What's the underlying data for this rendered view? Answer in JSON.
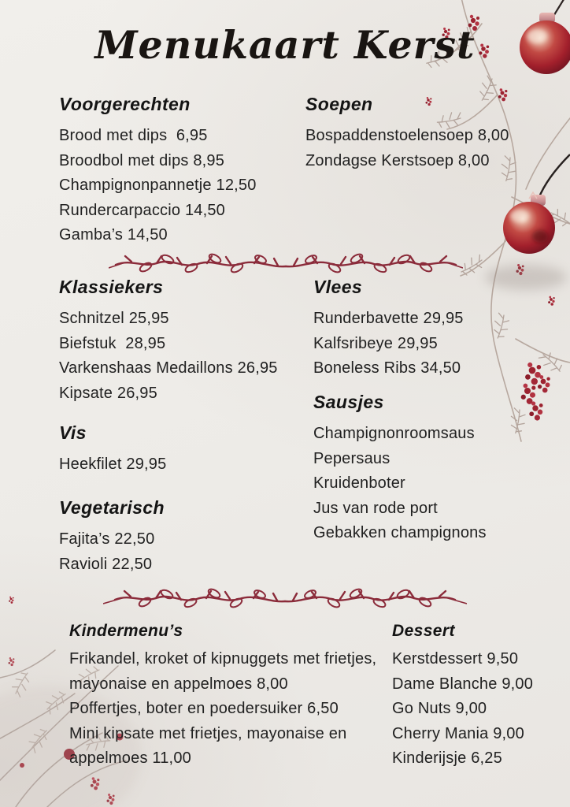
{
  "title": "Menukaart Kerst",
  "colors": {
    "background": "#edebe7",
    "text": "#212121",
    "heading": "#141414",
    "vine": "#8b2b3a",
    "bauble_red": "#a92531",
    "branch_taupe": "#b3a49c",
    "berry_red": "#9c2330"
  },
  "decorations": {
    "divider_icon": "vine-leaf-divider",
    "top_right": "red-bauble-ornament-with-frosted-berry-branch",
    "mid_right": "red-bauble-ornament-hanging-on-string",
    "bottom_left": "frosted-branch-with-red-berries"
  },
  "sections": {
    "voorgerechten": {
      "heading": "Voorgerechten",
      "items": [
        "Brood met dips  6,95",
        "Broodbol met dips 8,95",
        "Champignonpannetje 12,50",
        "Rundercarpaccio 14,50",
        "Gamba’s 14,50"
      ]
    },
    "soepen": {
      "heading": "Soepen",
      "items": [
        "Bospaddenstoelensoep 8,00",
        "Zondagse Kerstsoep 8,00"
      ]
    },
    "klassiekers": {
      "heading": "Klassiekers",
      "items": [
        "Schnitzel 25,95",
        "Biefstuk  28,95",
        "Varkenshaas Medaillons 26,95",
        "Kipsate 26,95"
      ]
    },
    "vlees": {
      "heading": "Vlees",
      "items": [
        "Runderbavette 29,95",
        "Kalfsribeye 29,95",
        "Boneless Ribs 34,50"
      ]
    },
    "vis": {
      "heading": "Vis",
      "items": [
        "Heekfilet 29,95"
      ]
    },
    "sausjes": {
      "heading": "Sausjes",
      "items": [
        "Champignonroomsaus",
        "Pepersaus",
        "Kruidenboter",
        "Jus van rode port",
        "Gebakken champignons"
      ]
    },
    "vegetarisch": {
      "heading": "Vegetarisch",
      "items": [
        "Fajita’s 22,50",
        "Ravioli 22,50"
      ]
    },
    "kindermenus": {
      "heading": "Kindermenu’s",
      "items": [
        "Frikandel, kroket of kipnuggets met frietjes, mayonaise en appelmoes 8,00",
        "Poffertjes, boter en poedersuiker 6,50",
        "Mini kipsate met frietjes, mayonaise en appelmoes 11,00"
      ]
    },
    "dessert": {
      "heading": "Dessert",
      "items": [
        "Kerstdessert 9,50",
        "Dame Blanche 9,00",
        "Go Nuts 9,00",
        "Cherry Mania 9,00",
        "Kinderijsje 6,25"
      ]
    }
  }
}
